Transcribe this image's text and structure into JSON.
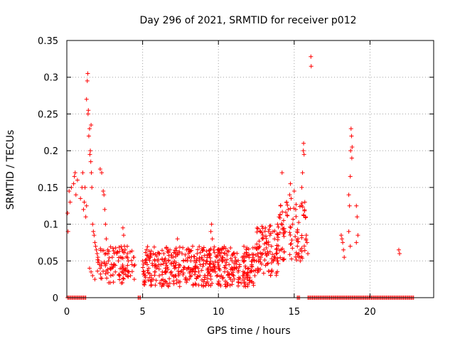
{
  "chart_data": {
    "type": "scatter",
    "title": "Day 296 of 2021, SRMTID for receiver p012",
    "xlabel": "GPS time / hours",
    "ylabel": "SRMTID / TECUs",
    "xlim": [
      0,
      24.2
    ],
    "ylim": [
      0,
      0.35
    ],
    "x_ticks": [
      0,
      5,
      10,
      15,
      20
    ],
    "x_tick_labels": [
      "0",
      "5",
      "10",
      "15",
      "20"
    ],
    "y_ticks": [
      0,
      0.05,
      0.1,
      0.15,
      0.2,
      0.25,
      0.3,
      0.35
    ],
    "y_tick_labels": [
      "0",
      "0.05",
      "0.1",
      "0.15",
      "0.2",
      "0.25",
      "0.3",
      "0.35"
    ],
    "grid": true,
    "marker": "+",
    "colors": {
      "series": "#ff0000",
      "grid": "#a0a0a0",
      "frame": "#000000"
    },
    "series": [
      {
        "name": "SRMTID",
        "points": [
          [
            0.05,
            0.115
          ],
          [
            0.08,
            0.09
          ],
          [
            0.15,
            0.145
          ],
          [
            0.22,
            0.13
          ],
          [
            0.3,
            0.15
          ],
          [
            0.45,
            0.155
          ],
          [
            0.5,
            0.165
          ],
          [
            0.55,
            0.17
          ],
          [
            0.6,
            0.14
          ],
          [
            0.7,
            0.16
          ],
          [
            0.9,
            0.135
          ],
          [
            1.0,
            0.15
          ],
          [
            1.05,
            0.17
          ],
          [
            1.1,
            0.12
          ],
          [
            1.15,
            0.13
          ],
          [
            1.2,
            0.15
          ],
          [
            1.25,
            0.11
          ],
          [
            1.3,
            0.125
          ],
          [
            1.3,
            0.27
          ],
          [
            1.35,
            0.295
          ],
          [
            1.38,
            0.305
          ],
          [
            1.4,
            0.25
          ],
          [
            1.42,
            0.255
          ],
          [
            1.45,
            0.22
          ],
          [
            1.5,
            0.23
          ],
          [
            1.52,
            0.195
          ],
          [
            1.55,
            0.2
          ],
          [
            1.58,
            0.185
          ],
          [
            1.6,
            0.235
          ],
          [
            1.62,
            0.17
          ],
          [
            1.65,
            0.15
          ],
          [
            1.7,
            0.1
          ],
          [
            1.75,
            0.09
          ],
          [
            1.8,
            0.085
          ],
          [
            1.85,
            0.075
          ],
          [
            1.9,
            0.07
          ],
          [
            1.95,
            0.065
          ],
          [
            2.0,
            0.06
          ],
          [
            2.05,
            0.055
          ],
          [
            2.1,
            0.05
          ],
          [
            2.15,
            0.045
          ],
          [
            2.2,
            0.04
          ],
          [
            1.5,
            0.04
          ],
          [
            1.6,
            0.035
          ],
          [
            1.7,
            0.03
          ],
          [
            1.85,
            0.025
          ],
          [
            2.2,
            0.175
          ],
          [
            2.3,
            0.17
          ],
          [
            2.4,
            0.145
          ],
          [
            2.45,
            0.14
          ],
          [
            2.5,
            0.12
          ],
          [
            2.55,
            0.1
          ],
          [
            2.6,
            0.08
          ],
          [
            2.7,
            0.065
          ],
          [
            2.75,
            0.05
          ],
          [
            2.85,
            0.04
          ],
          [
            2.9,
            0.03
          ],
          [
            3.0,
            0.055
          ],
          [
            3.1,
            0.045
          ],
          [
            3.2,
            0.035
          ],
          [
            3.3,
            0.06
          ],
          [
            3.4,
            0.05
          ],
          [
            3.5,
            0.03
          ],
          [
            3.6,
            0.02
          ],
          [
            3.7,
            0.095
          ],
          [
            3.75,
            0.085
          ],
          [
            3.8,
            0.07
          ],
          [
            3.85,
            0.065
          ],
          [
            3.9,
            0.04
          ],
          [
            4.0,
            0.06
          ],
          [
            4.05,
            0.05
          ],
          [
            4.1,
            0.035
          ],
          [
            4.2,
            0.03
          ],
          [
            4.3,
            0.045
          ],
          [
            4.4,
            0.055
          ],
          [
            4.45,
            0.025
          ],
          [
            5.0,
            0.05
          ],
          [
            5.1,
            0.035
          ],
          [
            5.2,
            0.03
          ],
          [
            5.3,
            0.045
          ],
          [
            5.4,
            0.04
          ],
          [
            5.5,
            0.055
          ],
          [
            5.6,
            0.025
          ],
          [
            5.7,
            0.06
          ],
          [
            5.8,
            0.035
          ],
          [
            5.9,
            0.04
          ],
          [
            6.0,
            0.05
          ],
          [
            6.1,
            0.03
          ],
          [
            6.2,
            0.045
          ],
          [
            6.3,
            0.035
          ],
          [
            6.4,
            0.06
          ],
          [
            6.5,
            0.04
          ],
          [
            6.6,
            0.02
          ],
          [
            6.7,
            0.05
          ],
          [
            6.8,
            0.065
          ],
          [
            6.9,
            0.035
          ],
          [
            7.0,
            0.055
          ],
          [
            7.1,
            0.04
          ],
          [
            7.2,
            0.03
          ],
          [
            7.3,
            0.08
          ],
          [
            7.4,
            0.045
          ],
          [
            7.5,
            0.035
          ],
          [
            7.6,
            0.06
          ],
          [
            7.7,
            0.05
          ],
          [
            7.8,
            0.025
          ],
          [
            7.9,
            0.065
          ],
          [
            8.0,
            0.04
          ],
          [
            8.1,
            0.055
          ],
          [
            8.2,
            0.03
          ],
          [
            8.3,
            0.07
          ],
          [
            8.4,
            0.05
          ],
          [
            8.5,
            0.04
          ],
          [
            8.6,
            0.06
          ],
          [
            8.7,
            0.035
          ],
          [
            8.8,
            0.045
          ],
          [
            8.9,
            0.055
          ],
          [
            9.0,
            0.065
          ],
          [
            9.1,
            0.03
          ],
          [
            9.2,
            0.05
          ],
          [
            9.3,
            0.04
          ],
          [
            9.4,
            0.06
          ],
          [
            9.5,
            0.09
          ],
          [
            9.55,
            0.1
          ],
          [
            9.6,
            0.08
          ],
          [
            9.7,
            0.045
          ],
          [
            9.8,
            0.035
          ],
          [
            9.9,
            0.055
          ],
          [
            10.0,
            0.04
          ],
          [
            10.1,
            0.065
          ],
          [
            10.2,
            0.03
          ],
          [
            10.3,
            0.05
          ],
          [
            10.4,
            0.06
          ],
          [
            10.5,
            0.04
          ],
          [
            10.6,
            0.035
          ],
          [
            10.7,
            0.045
          ],
          [
            10.8,
            0.025
          ],
          [
            10.9,
            0.05
          ],
          [
            11.0,
            0.03
          ],
          [
            11.1,
            0.055
          ],
          [
            11.2,
            0.04
          ],
          [
            11.3,
            0.035
          ],
          [
            11.4,
            0.045
          ],
          [
            11.5,
            0.02
          ],
          [
            11.6,
            0.03
          ],
          [
            11.7,
            0.05
          ],
          [
            11.8,
            0.015
          ],
          [
            11.9,
            0.025
          ],
          [
            12.0,
            0.04
          ],
          [
            12.1,
            0.035
          ],
          [
            12.2,
            0.045
          ],
          [
            12.3,
            0.02
          ],
          [
            12.4,
            0.03
          ],
          [
            12.5,
            0.05
          ],
          [
            12.6,
            0.06
          ],
          [
            12.7,
            0.07
          ],
          [
            12.8,
            0.055
          ],
          [
            12.9,
            0.08
          ],
          [
            13.0,
            0.065
          ],
          [
            13.1,
            0.095
          ],
          [
            13.2,
            0.075
          ],
          [
            13.3,
            0.06
          ],
          [
            13.4,
            0.085
          ],
          [
            13.5,
            0.07
          ],
          [
            13.6,
            0.09
          ],
          [
            13.7,
            0.08
          ],
          [
            13.8,
            0.06
          ],
          [
            13.9,
            0.1
          ],
          [
            14.0,
            0.11
          ],
          [
            14.1,
            0.125
          ],
          [
            14.2,
            0.17
          ],
          [
            14.3,
            0.105
          ],
          [
            14.4,
            0.09
          ],
          [
            14.5,
            0.13
          ],
          [
            14.6,
            0.12
          ],
          [
            14.7,
            0.14
          ],
          [
            14.75,
            0.155
          ],
          [
            14.8,
            0.135
          ],
          [
            14.9,
            0.1
          ],
          [
            15.0,
            0.145
          ],
          [
            15.1,
            0.12
          ],
          [
            15.2,
            0.09
          ],
          [
            15.3,
            0.06
          ],
          [
            15.4,
            0.05
          ],
          [
            15.5,
            0.15
          ],
          [
            15.55,
            0.17
          ],
          [
            15.6,
            0.2
          ],
          [
            15.62,
            0.21
          ],
          [
            15.65,
            0.195
          ],
          [
            15.7,
            0.13
          ],
          [
            15.75,
            0.11
          ],
          [
            15.8,
            0.085
          ],
          [
            15.85,
            0.075
          ],
          [
            15.9,
            0.06
          ],
          [
            16.1,
            0.328
          ],
          [
            16.12,
            0.315
          ],
          [
            18.1,
            0.085
          ],
          [
            18.15,
            0.08
          ],
          [
            18.2,
            0.075
          ],
          [
            18.25,
            0.065
          ],
          [
            18.3,
            0.055
          ],
          [
            18.6,
            0.14
          ],
          [
            18.65,
            0.125
          ],
          [
            18.7,
            0.165
          ],
          [
            18.72,
            0.2
          ],
          [
            18.75,
            0.23
          ],
          [
            18.78,
            0.22
          ],
          [
            18.8,
            0.19
          ],
          [
            18.82,
            0.205
          ],
          [
            18.6,
            0.09
          ],
          [
            18.7,
            0.07
          ],
          [
            19.1,
            0.125
          ],
          [
            19.15,
            0.11
          ],
          [
            19.2,
            0.085
          ],
          [
            19.1,
            0.075
          ],
          [
            21.9,
            0.065
          ],
          [
            21.95,
            0.06
          ]
        ]
      }
    ],
    "zero_clusters": [
      [
        0.05,
        1.25
      ],
      [
        4.7,
        4.85
      ],
      [
        15.2,
        15.4
      ],
      [
        15.9,
        22.9
      ]
    ]
  }
}
